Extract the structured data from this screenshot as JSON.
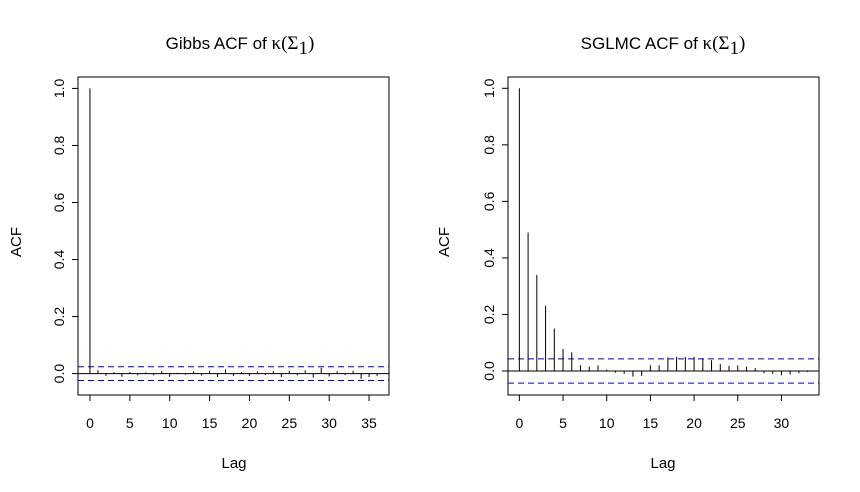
{
  "colors": {
    "confidence_band": "#0000cc",
    "bar": "#000000",
    "zero_line": "#000000",
    "frame": "#000000"
  },
  "chart_data": [
    {
      "type": "bar",
      "title": "Gibbs ACF of",
      "title_math": "κ(Σ",
      "title_sub": "1",
      "title_close": ")",
      "xlabel": "Lag",
      "ylabel": "ACF",
      "x_ticks": [
        "0",
        "5",
        "10",
        "15",
        "20",
        "25",
        "30",
        "35"
      ],
      "y_ticks": [
        "0.0",
        "0.2",
        "0.4",
        "0.6",
        "0.8",
        "1.0"
      ],
      "xlim": [
        -1.5,
        37.5
      ],
      "ylim": [
        -0.075,
        1.04
      ],
      "confidence_band": 0.024,
      "lags": [
        0,
        1,
        2,
        3,
        4,
        5,
        6,
        7,
        8,
        9,
        10,
        11,
        12,
        13,
        14,
        15,
        16,
        17,
        18,
        19,
        20,
        21,
        22,
        23,
        24,
        25,
        26,
        27,
        28,
        29,
        30,
        31,
        32,
        33,
        34,
        35,
        36
      ],
      "values": [
        1.0,
        0.012,
        -0.008,
        0.005,
        -0.011,
        0.006,
        -0.006,
        0.004,
        -0.006,
        0.009,
        -0.011,
        0.003,
        -0.004,
        0.008,
        -0.007,
        0.01,
        -0.012,
        0.015,
        -0.009,
        0.006,
        -0.008,
        0.007,
        -0.005,
        0.009,
        -0.012,
        0.01,
        -0.006,
        0.012,
        -0.014,
        0.02,
        -0.01,
        0.008,
        -0.005,
        0.01,
        -0.018,
        -0.012,
        -0.008
      ],
      "grid": false
    },
    {
      "type": "bar",
      "title": "SGLMC ACF of",
      "title_math": "κ(Σ",
      "title_sub": "1",
      "title_close": ")",
      "xlabel": "Lag",
      "ylabel": "ACF",
      "x_ticks": [
        "0",
        "5",
        "10",
        "15",
        "20",
        "25",
        "30"
      ],
      "y_ticks": [
        "0.0",
        "0.2",
        "0.4",
        "0.6",
        "0.8",
        "1.0"
      ],
      "xlim": [
        -1.3,
        34.3
      ],
      "ylim": [
        -0.085,
        1.04
      ],
      "confidence_band": 0.043,
      "lags": [
        0,
        1,
        2,
        3,
        4,
        5,
        6,
        7,
        8,
        9,
        10,
        11,
        12,
        13,
        14,
        15,
        16,
        17,
        18,
        19,
        20,
        21,
        22,
        23,
        24,
        25,
        26,
        27,
        28,
        29,
        30,
        31,
        32,
        33
      ],
      "values": [
        1.0,
        0.49,
        0.34,
        0.23,
        0.15,
        0.078,
        0.066,
        0.02,
        0.015,
        0.02,
        0.005,
        -0.006,
        -0.01,
        -0.02,
        -0.018,
        0.02,
        0.02,
        0.048,
        0.05,
        0.05,
        0.05,
        0.045,
        0.038,
        0.025,
        0.018,
        0.02,
        0.015,
        0.01,
        -0.008,
        -0.01,
        -0.015,
        -0.012,
        -0.008,
        -0.004
      ],
      "grid": false
    }
  ]
}
